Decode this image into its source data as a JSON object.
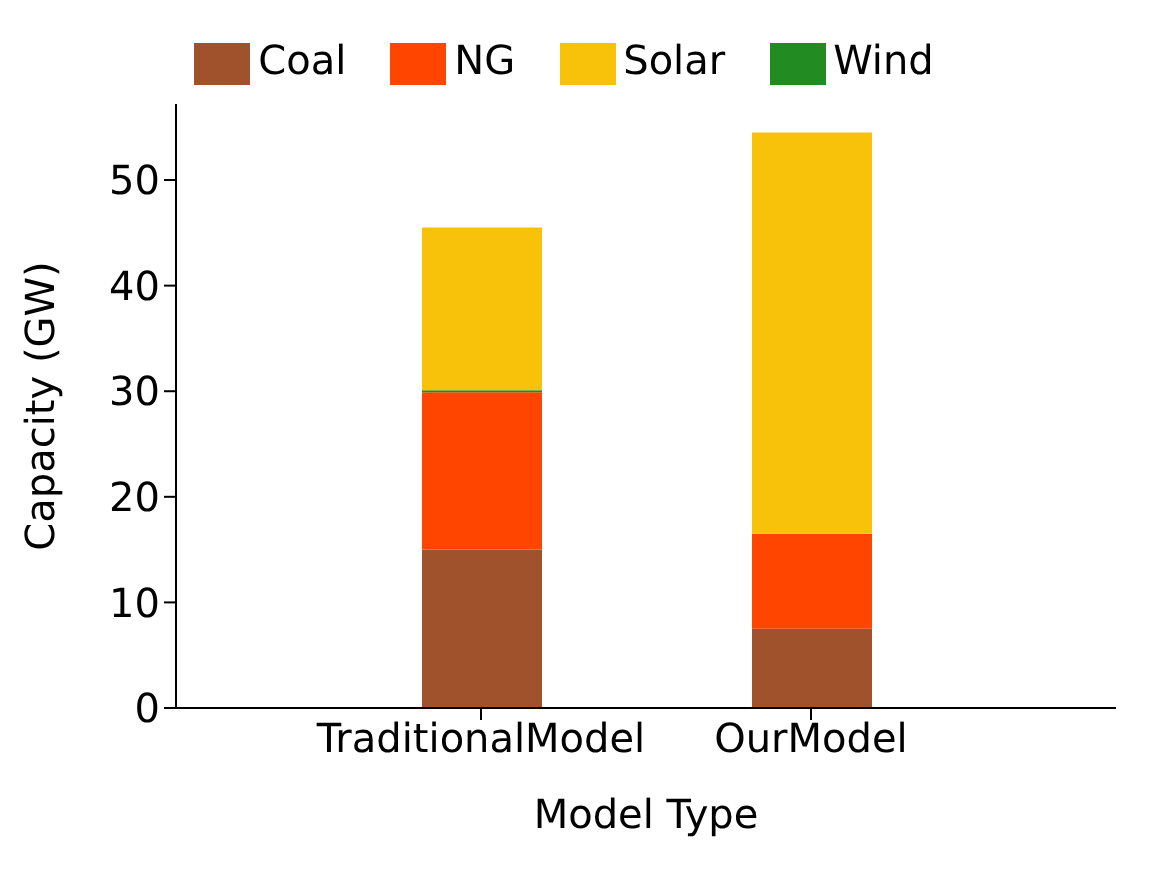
{
  "chart_data": {
    "type": "bar",
    "stacked": true,
    "xlabel": "Model Type",
    "ylabel": "Capacity (GW)",
    "categories": [
      "TraditionalModel",
      "OurModel"
    ],
    "series": [
      {
        "name": "Coal",
        "color": "#a0522d",
        "values": [
          15,
          7.5
        ]
      },
      {
        "name": "NG",
        "color": "#ff4500",
        "values": [
          14.9,
          9
        ]
      },
      {
        "name": "Wind",
        "color": "#228b22",
        "values": [
          0.2,
          0
        ]
      },
      {
        "name": "Solar",
        "color": "#f8c10a",
        "values": [
          15.4,
          38
        ]
      }
    ],
    "ylim": [
      0,
      57.2
    ],
    "yticks": [
      0,
      10,
      20,
      30,
      40,
      50
    ],
    "grid": false,
    "legend": "top"
  }
}
